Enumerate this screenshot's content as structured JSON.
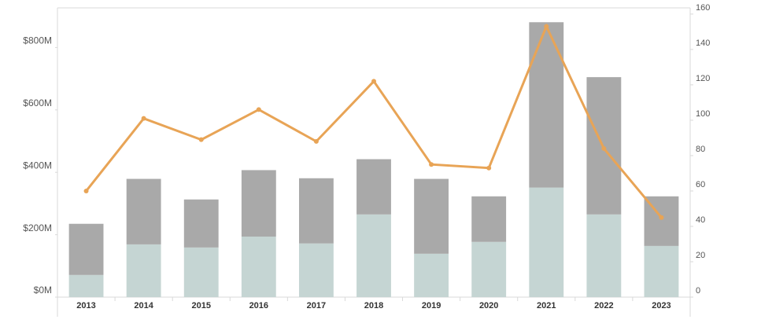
{
  "chart_data": {
    "type": "bar-line",
    "categories": [
      "2013",
      "2014",
      "2015",
      "2016",
      "2017",
      "2018",
      "2019",
      "2020",
      "2021",
      "2022",
      "2023"
    ],
    "series": [
      {
        "color": "#c5d5d3",
        "values": [
          71,
          169,
          159,
          194,
          172,
          265,
          139,
          177,
          351,
          265,
          164
        ]
      },
      {
        "color": "#a9a9a9",
        "values": [
          164,
          210,
          154,
          213,
          209,
          177,
          240,
          146,
          530,
          440,
          159
        ]
      },
      {
        "color": "#e8a456",
        "axis": "y2",
        "values": [
          60,
          101,
          89,
          106,
          88,
          122,
          75,
          73,
          153,
          84,
          45
        ]
      }
    ],
    "ylim": [
      0,
      927
    ],
    "yticks": [
      {
        "value": 0,
        "label": "$0M"
      },
      {
        "value": 200,
        "label": "$200M"
      },
      {
        "value": 400,
        "label": "$400M"
      },
      {
        "value": 600,
        "label": "$600M"
      },
      {
        "value": 800,
        "label": "$800M"
      }
    ],
    "y2lim": [
      0,
      163.5
    ],
    "y2ticks": [
      0,
      20,
      40,
      60,
      80,
      100,
      120,
      140,
      160
    ]
  }
}
